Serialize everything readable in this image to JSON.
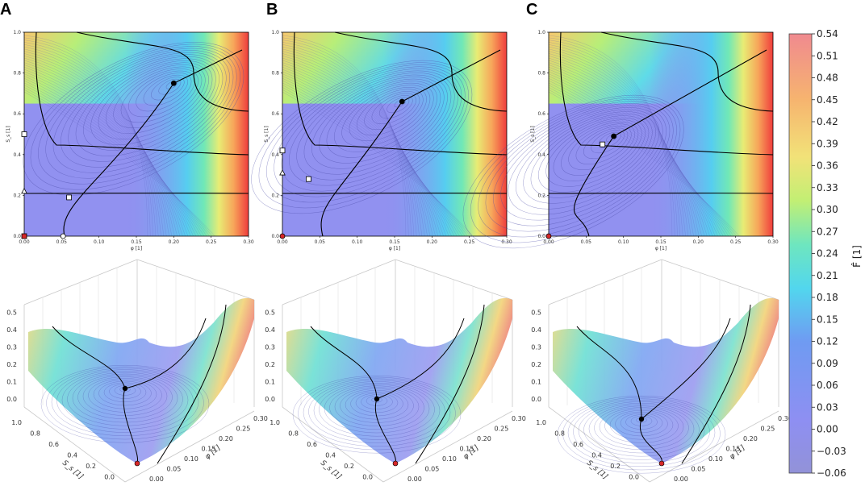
{
  "figure": {
    "panel_letters": [
      "A",
      "B",
      "C"
    ],
    "colorbar": {
      "label": "F̂ [1]",
      "ticks": [
        "0.54",
        "0.51",
        "0.48",
        "0.45",
        "0.42",
        "0.39",
        "0.36",
        "0.33",
        "0.30",
        "0.27",
        "0.24",
        "0.21",
        "0.18",
        "0.15",
        "0.12",
        "0.09",
        "0.06",
        "0.03",
        "0.00",
        "−0.03",
        "−0.06"
      ],
      "colors": [
        "#f08a8a",
        "#f6b470",
        "#f2e078",
        "#c7ef73",
        "#6ee6c0",
        "#55d7ee",
        "#6f9af0",
        "#8f8ff2",
        "#9090e0"
      ]
    },
    "contour_axes": {
      "x_ticks": [
        "0.00",
        "0.05",
        "0.10",
        "0.15",
        "0.20",
        "0.25",
        "0.30"
      ],
      "y_ticks": [
        "0.0",
        "0.2",
        "0.4",
        "0.6",
        "0.8",
        "1.0"
      ],
      "xlabel": "φ [1]",
      "ylabel": "S_s [1]"
    },
    "surface_axes": {
      "z_ticks": [
        "0.0",
        "0.1",
        "0.2",
        "0.3",
        "0.4",
        "0.5"
      ],
      "s_ticks": [
        "1.0",
        "0.8",
        "0.6",
        "0.4",
        "0.2",
        "0.0"
      ],
      "phi_ticks": [
        "0.00",
        "0.05",
        "0.10",
        "0.15",
        "0.20",
        "0.25",
        "0.30"
      ],
      "xlabel": "φ [1]",
      "ylabel": "S_s [1]"
    }
  },
  "chart_data": [
    {
      "type": "contour",
      "panel": "A",
      "xlabel": "φ [1]",
      "ylabel": "S_s [1]",
      "xlim": [
        0,
        0.3
      ],
      "ylim": [
        0,
        1.0
      ],
      "zlim": [
        -0.06,
        0.54
      ],
      "markers": [
        {
          "shape": "circle-filled",
          "x": 0.2,
          "y": 0.75,
          "color": "#000000"
        },
        {
          "shape": "square",
          "x": 0.0,
          "y": 0.5,
          "color": "#ffffff"
        },
        {
          "shape": "triangle",
          "x": 0.0,
          "y": 0.22,
          "color": "#ffffff"
        },
        {
          "shape": "square",
          "x": 0.06,
          "y": 0.19,
          "color": "#ffffff"
        },
        {
          "shape": "circle",
          "x": 0.052,
          "y": 0.0,
          "color": "#ffffff"
        },
        {
          "shape": "square-filled",
          "x": 0.0,
          "y": 0.0,
          "color": "#d62728"
        }
      ]
    },
    {
      "type": "contour",
      "panel": "B",
      "xlabel": "φ [1]",
      "ylabel": "S_s [1]",
      "xlim": [
        0,
        0.3
      ],
      "ylim": [
        0,
        1.0
      ],
      "zlim": [
        -0.06,
        0.54
      ],
      "markers": [
        {
          "shape": "circle-filled",
          "x": 0.16,
          "y": 0.66,
          "color": "#000000"
        },
        {
          "shape": "square",
          "x": 0.0,
          "y": 0.42,
          "color": "#ffffff"
        },
        {
          "shape": "triangle",
          "x": 0.0,
          "y": 0.31,
          "color": "#ffffff"
        },
        {
          "shape": "square",
          "x": 0.035,
          "y": 0.28,
          "color": "#ffffff"
        },
        {
          "shape": "circle-filled",
          "x": 0.0,
          "y": 0.0,
          "color": "#d62728"
        }
      ]
    },
    {
      "type": "contour",
      "panel": "C",
      "xlabel": "φ [1]",
      "ylabel": "S_s [1]",
      "xlim": [
        0,
        0.3
      ],
      "ylim": [
        0,
        1.0
      ],
      "zlim": [
        -0.06,
        0.54
      ],
      "markers": [
        {
          "shape": "circle-filled",
          "x": 0.087,
          "y": 0.49,
          "color": "#000000"
        },
        {
          "shape": "square",
          "x": 0.072,
          "y": 0.45,
          "color": "#ffffff"
        },
        {
          "shape": "circle-filled",
          "x": 0.0,
          "y": 0.0,
          "color": "#d62728"
        }
      ]
    },
    {
      "type": "surface3d",
      "panel": "A",
      "xlabel": "φ [1]",
      "ylabel": "S_s [1]",
      "zlim": [
        0.0,
        0.5
      ],
      "xlim": [
        0,
        0.3
      ],
      "ylim": [
        0,
        1.0
      ]
    },
    {
      "type": "surface3d",
      "panel": "B",
      "xlabel": "φ [1]",
      "ylabel": "S_s [1]",
      "zlim": [
        0.0,
        0.5
      ],
      "xlim": [
        0,
        0.3
      ],
      "ylim": [
        0,
        1.0
      ]
    },
    {
      "type": "surface3d",
      "panel": "C",
      "xlabel": "φ [1]",
      "ylabel": "S_s [1]",
      "zlim": [
        0.0,
        0.5
      ],
      "xlim": [
        0,
        0.3
      ],
      "ylim": [
        0,
        1.0
      ]
    }
  ]
}
